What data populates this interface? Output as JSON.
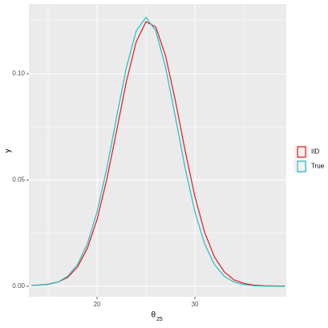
{
  "chart_data": {
    "type": "line",
    "xlabel": "θ",
    "xlabel_subscript": "25",
    "ylabel": "y",
    "x": [
      13.3,
      14,
      15,
      16,
      17,
      18,
      19,
      20,
      21,
      22,
      23,
      24,
      25,
      26,
      27,
      28,
      29,
      30,
      31,
      32,
      33,
      34,
      35,
      36,
      37,
      38,
      39,
      39.2
    ],
    "series": [
      {
        "name": "IID",
        "color": "#e41a1c",
        "values": [
          0.0004,
          0.0006,
          0.001,
          0.002,
          0.0042,
          0.0091,
          0.0178,
          0.0314,
          0.0504,
          0.0732,
          0.0964,
          0.115,
          0.1245,
          0.122,
          0.1085,
          0.0874,
          0.0638,
          0.0422,
          0.0253,
          0.0138,
          0.0068,
          0.003,
          0.0014,
          0.0006,
          0.0003,
          0.0002,
          0.0001,
          0.0001
        ]
      },
      {
        "name": "True",
        "color": "#1fbfc4",
        "values": [
          0.0004,
          0.0005,
          0.0009,
          0.002,
          0.0047,
          0.0102,
          0.0199,
          0.035,
          0.0556,
          0.0797,
          0.103,
          0.1202,
          0.1265,
          0.1202,
          0.103,
          0.0797,
          0.0556,
          0.035,
          0.0199,
          0.0102,
          0.0047,
          0.002,
          0.0008,
          0.0003,
          0.0001,
          0.0001,
          0.0,
          0.0
        ]
      }
    ],
    "xlim": [
      13.03,
      39.34
    ],
    "ylim": [
      -0.0049,
      0.1328
    ],
    "xticks": [
      20,
      30
    ],
    "yticks": [
      {
        "value": 0,
        "label": "0.00"
      },
      {
        "value": 0.05,
        "label": "0.05"
      },
      {
        "value": 0.1,
        "label": "0.10"
      }
    ],
    "x_minor_ticks": [
      15,
      25,
      35
    ],
    "y_minor_ticks": [
      0.025,
      0.075,
      0.125
    ],
    "grid": true,
    "legend": "right"
  }
}
